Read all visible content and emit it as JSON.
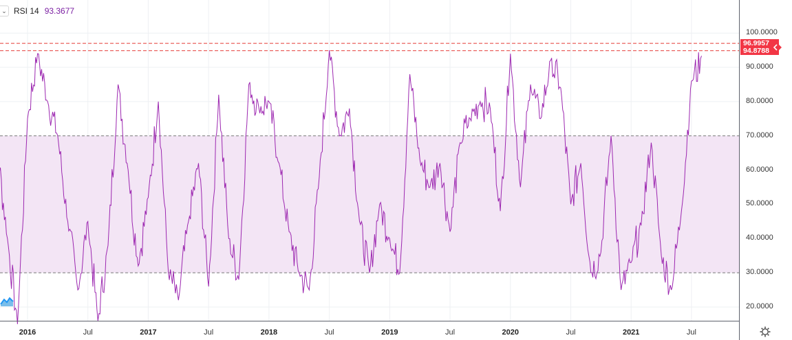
{
  "legend": {
    "indicator_name": "RSI 14",
    "indicator_value": "93.3677",
    "collapse_icon": "chevron-down-icon"
  },
  "colors": {
    "line": "#9c27b0",
    "band_fill": "#f3e5f5",
    "band_lines": "#787878",
    "badge": "#f23645",
    "dashed_lines": "#e53935",
    "grid": "#eef0f3"
  },
  "price_badges": [
    {
      "label": "96.9957",
      "value": 96.9957
    },
    {
      "label": "94.8788",
      "value": 94.8788
    }
  ],
  "chart_data": {
    "type": "line",
    "title": "",
    "series": [
      {
        "name": "RSI 14",
        "x": [
          "2015-09",
          "2015-10",
          "2015-11",
          "2015-12",
          "2016-01",
          "2016-02",
          "2016-03",
          "2016-04",
          "2016-05",
          "2016-06",
          "2016-07",
          "2016-08",
          "2016-09",
          "2016-10",
          "2016-11",
          "2016-12",
          "2017-01",
          "2017-02",
          "2017-03",
          "2017-04",
          "2017-05",
          "2017-06",
          "2017-07",
          "2017-08",
          "2017-09",
          "2017-10",
          "2017-11",
          "2017-12",
          "2018-01",
          "2018-02",
          "2018-03",
          "2018-04",
          "2018-05",
          "2018-06",
          "2018-07",
          "2018-08",
          "2018-09",
          "2018-10",
          "2018-11",
          "2018-12",
          "2019-01",
          "2019-02",
          "2019-03",
          "2019-04",
          "2019-05",
          "2019-06",
          "2019-07",
          "2019-08",
          "2019-09",
          "2019-10",
          "2019-11",
          "2019-12",
          "2020-01",
          "2020-02",
          "2020-03",
          "2020-04",
          "2020-05",
          "2020-06",
          "2020-07",
          "2020-08",
          "2020-09",
          "2020-10",
          "2020-11",
          "2020-12",
          "2021-01",
          "2021-02",
          "2021-03",
          "2021-04",
          "2021-05",
          "2021-06",
          "2021-07",
          "2021-08"
        ],
        "y": [
          25,
          66,
          40,
          15,
          75,
          94,
          80,
          70,
          45,
          25,
          45,
          16,
          38,
          85,
          60,
          32,
          52,
          80,
          30,
          22,
          45,
          62,
          26,
          82,
          40,
          28,
          85,
          78,
          80,
          62,
          42,
          30,
          25,
          58,
          95,
          70,
          78,
          45,
          30,
          50,
          40,
          30,
          88,
          63,
          55,
          62,
          42,
          68,
          75,
          80,
          78,
          48,
          94,
          55,
          85,
          75,
          92,
          84,
          50,
          62,
          30,
          36,
          70,
          25,
          33,
          44,
          68,
          35,
          25,
          48,
          86,
          92
        ],
        "last_value": 93.3677
      }
    ],
    "x_tick_labels": [
      "2016",
      "Jul",
      "2017",
      "Jul",
      "2018",
      "Jul",
      "2019",
      "Jul",
      "2020",
      "Jul",
      "2021",
      "Jul"
    ],
    "y_tick_labels": [
      "100.0000",
      "90.0000",
      "80.0000",
      "70.0000",
      "60.0000",
      "50.0000",
      "40.0000",
      "30.0000",
      "20.0000"
    ],
    "ylim": [
      15,
      100
    ],
    "bands": {
      "upper": 70,
      "lower": 30
    },
    "horizontal_levels": [
      96.9957,
      94.8788
    ],
    "grid": true,
    "y_axis_position": "right"
  }
}
